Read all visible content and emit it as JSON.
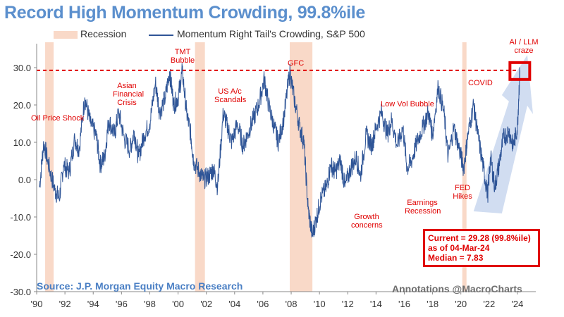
{
  "title": "Record High Momentum Crowding, 99.8%ile",
  "legend": {
    "recession_label": "Recession",
    "series_label": "Momentum Right Tail's Crowding, S&P 500"
  },
  "colors": {
    "series": "#2f5597",
    "recession": "#f9d9c8",
    "highlight": "#e00000",
    "title": "#5b8fcd",
    "arrow": "#c9d7ef"
  },
  "source": "Source: J.P. Morgan Equity Macro Research",
  "credit": "Annotations @MacroCharts",
  "callout": {
    "line1": "Current = 29.28 (99.8%ile)",
    "line2": "as of 04-Mar-24",
    "line3": "Median = 7.83"
  },
  "annotations": {
    "oil": "Oil Price Shock",
    "asian": "Asian Financial Crisis",
    "tmt": "TMT Bubble",
    "usac": "US A/c Scandals",
    "gfc": "GFC",
    "growth": "Growth concerns",
    "earnings": "Earnings Recession",
    "lowvol": "Low Vol Bubble",
    "covid": "COVID",
    "fed": "FED Hikes",
    "ai": "AI / LLM craze"
  },
  "chart_data": {
    "type": "line",
    "title": "Record High Momentum Crowding, 99.8%ile",
    "series_name": "Momentum Right Tail's Crowding, S&P 500",
    "xlim": [
      1990.0,
      2025.3
    ],
    "ylim": [
      -30,
      30
    ],
    "x_ticks": [
      "'90",
      "'92",
      "'94",
      "'96",
      "'98",
      "'00",
      "'02",
      "'04",
      "'06",
      "'08",
      "'10",
      "'12",
      "'14",
      "'16",
      "'18",
      "'20",
      "'22",
      "'24"
    ],
    "y_ticks": [
      "30.0",
      "20.0",
      "10.0",
      "0.0",
      "-10.0",
      "-20.0",
      "-30.0"
    ],
    "reference_line": 29.28,
    "recessions": [
      [
        1990.6,
        1991.2
      ],
      [
        2001.2,
        2001.9
      ],
      [
        2007.9,
        2009.5
      ],
      [
        2020.1,
        2020.4
      ]
    ],
    "points": [
      [
        1990.2,
        -2
      ],
      [
        1990.5,
        10
      ],
      [
        1990.9,
        3
      ],
      [
        1991.3,
        -3
      ],
      [
        1991.6,
        -5
      ],
      [
        1991.9,
        4
      ],
      [
        1992.3,
        2
      ],
      [
        1992.7,
        11
      ],
      [
        1993.0,
        8
      ],
      [
        1993.4,
        22
      ],
      [
        1993.8,
        15
      ],
      [
        1994.2,
        12
      ],
      [
        1994.5,
        4
      ],
      [
        1994.8,
        6
      ],
      [
        1995.1,
        16
      ],
      [
        1995.5,
        12
      ],
      [
        1995.8,
        18
      ],
      [
        1996.2,
        11
      ],
      [
        1996.6,
        8
      ],
      [
        1996.9,
        13
      ],
      [
        1997.2,
        6
      ],
      [
        1997.6,
        12
      ],
      [
        1998.0,
        15
      ],
      [
        1998.4,
        26
      ],
      [
        1998.7,
        18
      ],
      [
        1999.1,
        22
      ],
      [
        1999.4,
        29
      ],
      [
        1999.7,
        20
      ],
      [
        2000.0,
        22
      ],
      [
        2000.3,
        29
      ],
      [
        2000.6,
        18
      ],
      [
        2000.9,
        12
      ],
      [
        2001.1,
        5
      ],
      [
        2001.5,
        2
      ],
      [
        2001.8,
        0
      ],
      [
        2002.2,
        1
      ],
      [
        2002.5,
        3
      ],
      [
        2002.8,
        -2
      ],
      [
        2003.2,
        18
      ],
      [
        2003.5,
        14
      ],
      [
        2003.8,
        10
      ],
      [
        2004.2,
        15
      ],
      [
        2004.6,
        9
      ],
      [
        2004.9,
        12
      ],
      [
        2005.3,
        16
      ],
      [
        2005.7,
        20
      ],
      [
        2006.1,
        27
      ],
      [
        2006.4,
        20
      ],
      [
        2006.8,
        14
      ],
      [
        2007.1,
        10
      ],
      [
        2007.5,
        17
      ],
      [
        2007.9,
        29
      ],
      [
        2008.2,
        22
      ],
      [
        2008.6,
        14
      ],
      [
        2008.9,
        10
      ],
      [
        2009.2,
        -8
      ],
      [
        2009.5,
        -15
      ],
      [
        2009.8,
        -10
      ],
      [
        2010.1,
        -5
      ],
      [
        2010.5,
        -2
      ],
      [
        2010.8,
        4
      ],
      [
        2011.1,
        2
      ],
      [
        2011.5,
        5
      ],
      [
        2011.8,
        -2
      ],
      [
        2012.2,
        3
      ],
      [
        2012.6,
        6
      ],
      [
        2012.9,
        1
      ],
      [
        2013.3,
        12
      ],
      [
        2013.7,
        9
      ],
      [
        2014.0,
        14
      ],
      [
        2014.4,
        18
      ],
      [
        2014.8,
        12
      ],
      [
        2015.1,
        16
      ],
      [
        2015.5,
        9
      ],
      [
        2015.9,
        14
      ],
      [
        2016.2,
        3
      ],
      [
        2016.5,
        5
      ],
      [
        2016.9,
        10
      ],
      [
        2017.3,
        14
      ],
      [
        2017.7,
        18
      ],
      [
        2018.0,
        12
      ],
      [
        2018.4,
        25
      ],
      [
        2018.8,
        18
      ],
      [
        2019.1,
        6
      ],
      [
        2019.5,
        14
      ],
      [
        2019.9,
        8
      ],
      [
        2020.2,
        3
      ],
      [
        2020.5,
        12
      ],
      [
        2020.9,
        20
      ],
      [
        2021.2,
        12
      ],
      [
        2021.6,
        3
      ],
      [
        2021.9,
        -4
      ],
      [
        2022.1,
        6
      ],
      [
        2022.4,
        -2
      ],
      [
        2022.7,
        4
      ],
      [
        2023.0,
        11
      ],
      [
        2023.4,
        13
      ],
      [
        2023.7,
        9
      ],
      [
        2024.0,
        14
      ],
      [
        2024.17,
        29.28
      ]
    ]
  }
}
